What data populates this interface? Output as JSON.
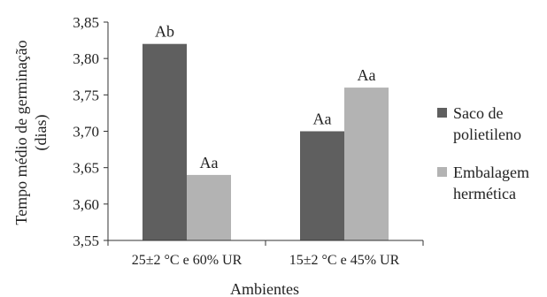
{
  "chart_data": {
    "type": "bar",
    "categories": [
      "25±2 °C e 60% UR",
      "15±2 °C e 45% UR"
    ],
    "series": [
      {
        "name": "Saco de polietileno",
        "legend_lines": [
          "Saco de",
          "polietileno"
        ],
        "color": "#5f5f5f",
        "values": [
          3.82,
          3.7
        ],
        "labels": [
          "Ab",
          "Aa"
        ]
      },
      {
        "name": "Embalagem hermética",
        "legend_lines": [
          "Embalagem",
          "hermética"
        ],
        "color": "#b3b3b3",
        "values": [
          3.64,
          3.76
        ],
        "labels": [
          "Aa",
          "Aa"
        ]
      }
    ],
    "xlabel": "Ambientes",
    "ylabel_lines": [
      "Tempo médio de germinação",
      "(dias)"
    ],
    "ylim": [
      3.55,
      3.85
    ],
    "yticks": [
      "3,55",
      "3,60",
      "3,65",
      "3,70",
      "3,75",
      "3,80",
      "3,85"
    ],
    "ytick_values": [
      3.55,
      3.6,
      3.65,
      3.7,
      3.75,
      3.8,
      3.85
    ],
    "grid": false,
    "legend_position": "right"
  }
}
